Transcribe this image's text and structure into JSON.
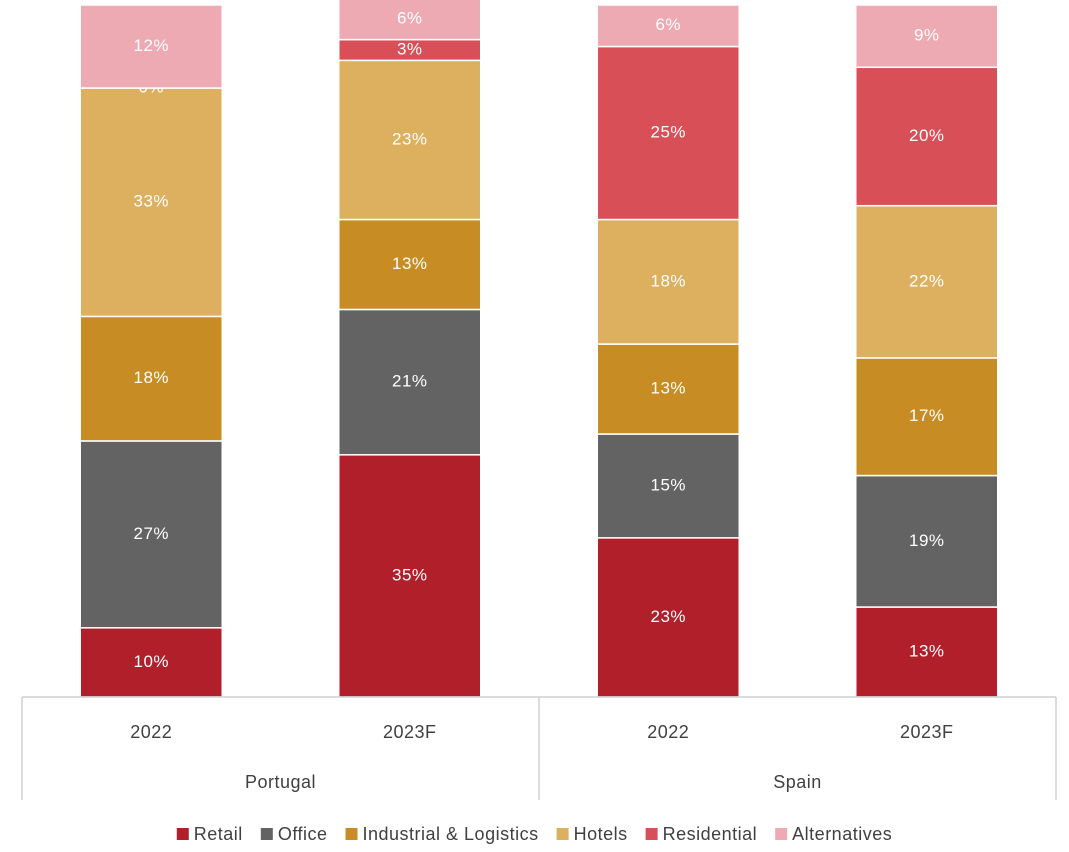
{
  "chart_data": {
    "type": "stacked_bar",
    "categories": [
      "2022",
      "2023F",
      "2022",
      "2023F"
    ],
    "group_labels": [
      "Portugal",
      "Spain"
    ],
    "ylim": [
      0,
      100
    ],
    "legend": "bottom",
    "series": [
      {
        "name": "Retail",
        "color": "#b01f2a",
        "values": [
          10,
          35,
          23,
          13
        ],
        "value_labels": [
          "10%",
          "35%",
          "23%",
          "13%"
        ]
      },
      {
        "name": "Office",
        "color": "#636363",
        "values": [
          27,
          21,
          15,
          19
        ],
        "value_labels": [
          "27%",
          "21%",
          "15%",
          "19%"
        ]
      },
      {
        "name": "Industrial & Logistics",
        "color": "#c78d24",
        "values": [
          18,
          13,
          13,
          17
        ],
        "value_labels": [
          "18%",
          "13%",
          "13%",
          "17%"
        ]
      },
      {
        "name": "Hotels",
        "color": "#dcb05f",
        "values": [
          33,
          23,
          18,
          22
        ],
        "value_labels": [
          "33%",
          "23%",
          "18%",
          "22%"
        ]
      },
      {
        "name": "Residential",
        "color": "#d94f58",
        "values": [
          0,
          3,
          25,
          20
        ],
        "value_labels": [
          "0%",
          "3%",
          "25%",
          "20%"
        ]
      },
      {
        "name": "Alternatives",
        "color": "#eeaab3",
        "values": [
          12,
          6,
          6,
          9
        ],
        "value_labels": [
          "12%",
          "6%",
          "6%",
          "9%"
        ]
      }
    ]
  }
}
